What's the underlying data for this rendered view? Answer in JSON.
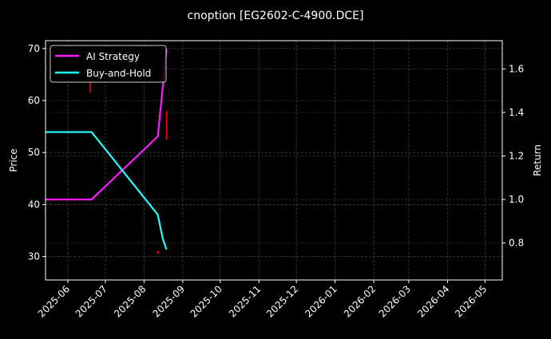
{
  "chart_data": {
    "type": "line",
    "title": "cnoption [EG2602-C-4900.DCE]",
    "xlabel": "",
    "ylabel": "Price",
    "ylabel_right": "Return",
    "x_tick_labels": [
      "2025-06",
      "2025-07",
      "2025-08",
      "2025-09",
      "2025-10",
      "2025-11",
      "2025-12",
      "2026-01",
      "2026-02",
      "2026-03",
      "2026-04",
      "2026-05"
    ],
    "y_ticks_left": [
      30,
      40,
      50,
      60,
      70
    ],
    "y_ticks_right": [
      "0.8",
      "1.0",
      "1.2",
      "1.4",
      "1.6"
    ],
    "ylim_left": [
      25.5,
      71.5
    ],
    "ylim_right": [
      0.63,
      1.73
    ],
    "grid": true,
    "legend_position": "upper left",
    "series": [
      {
        "name": "AI Strategy",
        "axis": "right",
        "color": "#ff1aff",
        "x": [
          "2025-05-15",
          "2025-06-20",
          "2025-08-12",
          "2025-08-19"
        ],
        "values": [
          1.0,
          1.0,
          1.29,
          1.69
        ]
      },
      {
        "name": "Buy-and-Hold",
        "axis": "right",
        "color": "#22ffff",
        "x": [
          "2025-05-15",
          "2025-06-20",
          "2025-08-12",
          "2025-08-16",
          "2025-08-19"
        ],
        "values": [
          1.31,
          1.31,
          0.93,
          0.82,
          0.77
        ]
      }
    ],
    "price_marks": {
      "color": "#ff0000",
      "items": [
        {
          "x": "2025-06-19",
          "low": 61.5,
          "high": 64.5
        },
        {
          "x": "2025-08-12",
          "low": 30.6,
          "high": 31.0
        },
        {
          "x": "2025-08-19",
          "low": 52.5,
          "high": 58.0
        }
      ]
    }
  }
}
